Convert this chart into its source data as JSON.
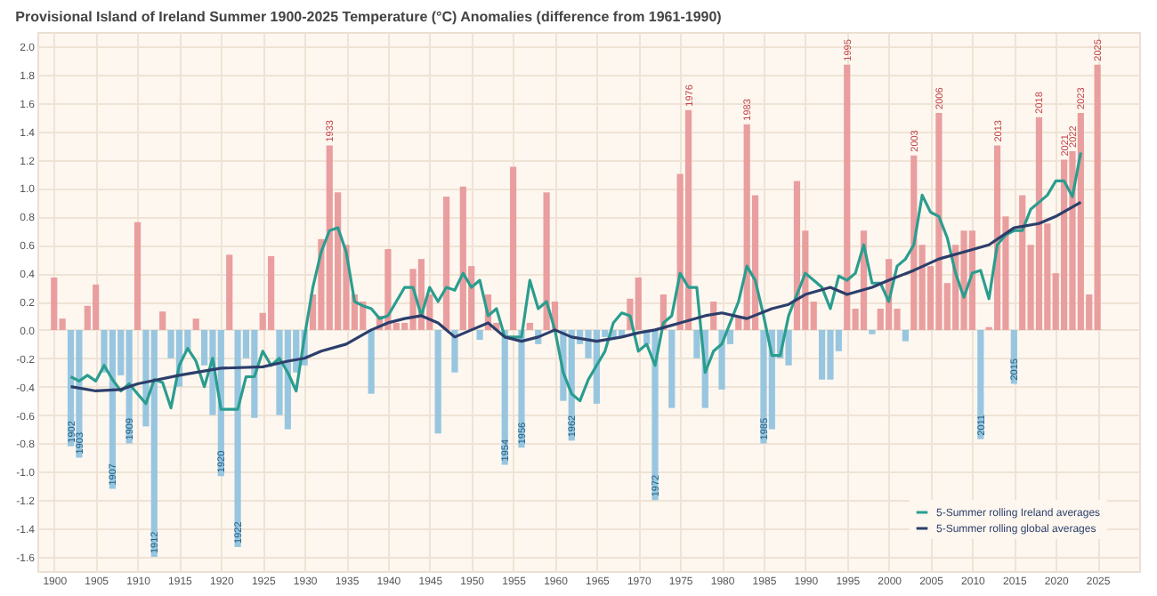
{
  "chart_data": {
    "type": "bar",
    "title": "Provisional Island of Ireland Summer 1900-2025 Temperature (°C) Anomalies (difference from 1961-1990)",
    "x": [
      1900,
      1901,
      1902,
      1903,
      1904,
      1905,
      1906,
      1907,
      1908,
      1909,
      1910,
      1911,
      1912,
      1913,
      1914,
      1915,
      1916,
      1917,
      1918,
      1919,
      1920,
      1921,
      1922,
      1923,
      1924,
      1925,
      1926,
      1927,
      1928,
      1929,
      1930,
      1931,
      1932,
      1933,
      1934,
      1935,
      1936,
      1937,
      1938,
      1939,
      1940,
      1941,
      1942,
      1943,
      1944,
      1945,
      1946,
      1947,
      1948,
      1949,
      1950,
      1951,
      1952,
      1953,
      1954,
      1955,
      1956,
      1957,
      1958,
      1959,
      1960,
      1961,
      1962,
      1963,
      1964,
      1965,
      1966,
      1967,
      1968,
      1969,
      1970,
      1971,
      1972,
      1973,
      1974,
      1975,
      1976,
      1977,
      1978,
      1979,
      1980,
      1981,
      1982,
      1983,
      1984,
      1985,
      1986,
      1987,
      1988,
      1989,
      1990,
      1991,
      1992,
      1993,
      1994,
      1995,
      1996,
      1997,
      1998,
      1999,
      2000,
      2001,
      2002,
      2003,
      2004,
      2005,
      2006,
      2007,
      2008,
      2009,
      2010,
      2011,
      2012,
      2013,
      2014,
      2015,
      2016,
      2017,
      2018,
      2019,
      2020,
      2021,
      2022,
      2023,
      2024,
      2025
    ],
    "values": [
      0.37,
      0.08,
      -0.82,
      -0.9,
      0.17,
      0.32,
      -0.3,
      -1.12,
      -0.32,
      -0.8,
      0.76,
      -0.68,
      -1.6,
      0.13,
      -0.2,
      -0.4,
      -0.15,
      0.08,
      -0.25,
      -0.6,
      -1.03,
      0.53,
      -1.53,
      -0.2,
      -0.62,
      0.12,
      0.52,
      -0.6,
      -0.7,
      -0.3,
      -0.25,
      0.25,
      0.64,
      1.3,
      0.97,
      0.6,
      0.25,
      0.2,
      -0.45,
      0.1,
      0.57,
      0.05,
      0.05,
      0.43,
      0.5,
      0.25,
      -0.73,
      0.94,
      -0.3,
      1.01,
      0.45,
      -0.07,
      0.25,
      0.05,
      -0.95,
      1.15,
      -0.83,
      0.05,
      -0.1,
      0.97,
      0.2,
      -0.5,
      -0.78,
      -0.1,
      -0.2,
      -0.52,
      -0.05,
      -0.05,
      -0.05,
      0.22,
      0.37,
      -0.1,
      -1.2,
      0.25,
      -0.55,
      1.1,
      1.55,
      -0.2,
      -0.55,
      0.2,
      -0.42,
      -0.1,
      0.1,
      1.45,
      0.95,
      -0.8,
      -0.7,
      -0.2,
      -0.25,
      1.05,
      0.7,
      0.2,
      -0.35,
      -0.35,
      -0.15,
      1.87,
      0.15,
      0.7,
      -0.03,
      0.15,
      0.5,
      0.15,
      -0.08,
      1.23,
      0.6,
      0.45,
      1.53,
      0.33,
      0.6,
      0.7,
      0.7,
      -0.77,
      0.02,
      1.3,
      0.8,
      -0.38,
      0.95,
      0.6,
      1.5,
      0.75,
      0.4,
      1.2,
      1.26,
      1.53,
      0.25,
      1.87
    ],
    "colors": [
      "#e8999a",
      "#e8999a",
      "#92c3de",
      "#92c3de",
      "#e8999a",
      "#e8999a",
      "#92c3de",
      "#92c3de",
      "#92c3de",
      "#92c3de",
      "#e8999a",
      "#92c3de",
      "#92c3de",
      "#e8999a",
      "#92c3de",
      "#92c3de",
      "#92c3de",
      "#e8999a",
      "#92c3de",
      "#92c3de",
      "#92c3de",
      "#e8999a",
      "#92c3de",
      "#92c3de",
      "#92c3de",
      "#e8999a",
      "#e8999a",
      "#92c3de",
      "#92c3de",
      "#92c3de",
      "#92c3de",
      "#e8999a",
      "#e8999a",
      "#e8999a",
      "#e8999a",
      "#e8999a",
      "#e8999a",
      "#e8999a",
      "#92c3de",
      "#e8999a",
      "#e8999a",
      "#e8999a",
      "#e8999a",
      "#e8999a",
      "#e8999a",
      "#e8999a",
      "#92c3de",
      "#e8999a",
      "#92c3de",
      "#e8999a",
      "#e8999a",
      "#92c3de",
      "#e8999a",
      "#e8999a",
      "#92c3de",
      "#e8999a",
      "#92c3de",
      "#e8999a",
      "#92c3de",
      "#e8999a",
      "#e8999a",
      "#92c3de",
      "#92c3de",
      "#92c3de",
      "#92c3de",
      "#92c3de",
      "#92c3de",
      "#92c3de",
      "#92c3de",
      "#e8999a",
      "#e8999a",
      "#92c3de",
      "#92c3de",
      "#e8999a",
      "#92c3de",
      "#e8999a",
      "#e8999a",
      "#92c3de",
      "#92c3de",
      "#e8999a",
      "#92c3de",
      "#92c3de",
      "#e8999a",
      "#e8999a",
      "#e8999a",
      "#92c3de",
      "#92c3de",
      "#92c3de",
      "#92c3de",
      "#e8999a",
      "#e8999a",
      "#e8999a",
      "#92c3de",
      "#92c3de",
      "#92c3de",
      "#e8999a",
      "#e8999a",
      "#e8999a",
      "#92c3de",
      "#e8999a",
      "#e8999a",
      "#e8999a",
      "#92c3de",
      "#e8999a",
      "#e8999a",
      "#e8999a",
      "#e8999a",
      "#e8999a",
      "#e8999a",
      "#e8999a",
      "#e8999a",
      "#92c3de",
      "#e8999a",
      "#e8999a",
      "#e8999a",
      "#92c3de",
      "#e8999a",
      "#e8999a",
      "#e8999a",
      "#e8999a",
      "#e8999a",
      "#e8999a",
      "#e8999a",
      "#e8999a",
      "#e8999a",
      "#e8999a"
    ],
    "series": [
      {
        "name": "5-Summer rolling Ireland averages",
        "type": "line",
        "color": "#2a9d8f",
        "x": [
          1902,
          1903,
          1904,
          1905,
          1906,
          1907,
          1908,
          1909,
          1910,
          1911,
          1912,
          1913,
          1914,
          1915,
          1916,
          1917,
          1918,
          1919,
          1920,
          1921,
          1922,
          1923,
          1924,
          1925,
          1926,
          1927,
          1928,
          1929,
          1930,
          1931,
          1932,
          1933,
          1934,
          1935,
          1936,
          1937,
          1938,
          1939,
          1940,
          1941,
          1942,
          1943,
          1944,
          1945,
          1946,
          1947,
          1948,
          1949,
          1950,
          1951,
          1952,
          1953,
          1954,
          1955,
          1956,
          1957,
          1958,
          1959,
          1960,
          1961,
          1962,
          1963,
          1964,
          1965,
          1966,
          1967,
          1968,
          1969,
          1970,
          1971,
          1972,
          1973,
          1974,
          1975,
          1976,
          1977,
          1978,
          1979,
          1980,
          1981,
          1982,
          1983,
          1984,
          1985,
          1986,
          1987,
          1988,
          1989,
          1990,
          1991,
          1992,
          1993,
          1994,
          1995,
          1996,
          1997,
          1998,
          1999,
          2000,
          2001,
          2002,
          2003,
          2004,
          2005,
          2006,
          2007,
          2008,
          2009,
          2010,
          2011,
          2012,
          2013,
          2014,
          2015,
          2016,
          2017,
          2018,
          2019,
          2020,
          2021,
          2022,
          2023
        ],
        "values": [
          -0.33,
          -0.36,
          -0.32,
          -0.36,
          -0.25,
          -0.35,
          -0.43,
          -0.38,
          -0.45,
          -0.52,
          -0.35,
          -0.37,
          -0.55,
          -0.25,
          -0.13,
          -0.22,
          -0.4,
          -0.2,
          -0.56,
          -0.56,
          -0.56,
          -0.33,
          -0.33,
          -0.15,
          -0.25,
          -0.2,
          -0.3,
          -0.43,
          -0.05,
          0.3,
          0.55,
          0.7,
          0.72,
          0.55,
          0.2,
          0.17,
          0.15,
          0.08,
          0.1,
          0.2,
          0.3,
          0.3,
          0.1,
          0.3,
          0.2,
          0.3,
          0.28,
          0.4,
          0.3,
          0.35,
          0.1,
          0.15,
          -0.05,
          -0.05,
          -0.05,
          0.35,
          0.15,
          0.2,
          0.0,
          -0.3,
          -0.45,
          -0.5,
          -0.35,
          -0.25,
          -0.15,
          0.05,
          0.12,
          0.1,
          -0.15,
          -0.1,
          -0.25,
          0.05,
          0.1,
          0.4,
          0.3,
          0.3,
          -0.3,
          -0.15,
          -0.1,
          0.05,
          0.2,
          0.45,
          0.35,
          0.1,
          -0.18,
          -0.18,
          0.1,
          0.25,
          0.4,
          0.35,
          0.3,
          0.15,
          0.38,
          0.35,
          0.4,
          0.6,
          0.33,
          0.33,
          0.2,
          0.45,
          0.5,
          0.6,
          0.95,
          0.83,
          0.8,
          0.65,
          0.4,
          0.23,
          0.4,
          0.42,
          0.22,
          0.6,
          0.67,
          0.7,
          0.7,
          0.85,
          0.9,
          0.95,
          1.05,
          1.05,
          0.94,
          1.25
        ]
      },
      {
        "name": "5-Summer rolling global averages",
        "type": "line",
        "color": "#2c3e6b",
        "x": [
          1902,
          1905,
          1908,
          1910,
          1915,
          1920,
          1925,
          1928,
          1930,
          1932,
          1935,
          1938,
          1940,
          1942,
          1944,
          1946,
          1948,
          1950,
          1952,
          1954,
          1956,
          1958,
          1960,
          1962,
          1965,
          1968,
          1970,
          1972,
          1975,
          1978,
          1980,
          1983,
          1986,
          1988,
          1990,
          1993,
          1995,
          1998,
          2000,
          2003,
          2006,
          2009,
          2012,
          2015,
          2018,
          2020,
          2023
        ],
        "values": [
          -0.4,
          -0.43,
          -0.42,
          -0.38,
          -0.32,
          -0.27,
          -0.26,
          -0.22,
          -0.2,
          -0.15,
          -0.1,
          0.0,
          0.05,
          0.08,
          0.1,
          0.05,
          -0.05,
          0.0,
          0.05,
          -0.05,
          -0.08,
          -0.05,
          0.0,
          -0.05,
          -0.08,
          -0.05,
          -0.02,
          0.0,
          0.05,
          0.1,
          0.12,
          0.08,
          0.15,
          0.18,
          0.25,
          0.3,
          0.25,
          0.3,
          0.35,
          0.42,
          0.5,
          0.55,
          0.6,
          0.72,
          0.75,
          0.8,
          0.9
        ]
      }
    ],
    "annotations": [
      {
        "text": "1902",
        "x": 1902,
        "y": -0.82
      },
      {
        "text": "1903",
        "x": 1903,
        "y": -0.9
      },
      {
        "text": "1907",
        "x": 1907,
        "y": -1.12
      },
      {
        "text": "1909",
        "x": 1909,
        "y": -0.8
      },
      {
        "text": "1912",
        "x": 1912,
        "y": -1.6
      },
      {
        "text": "1920",
        "x": 1920,
        "y": -1.03
      },
      {
        "text": "1922",
        "x": 1922,
        "y": -1.53
      },
      {
        "text": "1933",
        "x": 1933,
        "y": 1.3
      },
      {
        "text": "1954",
        "x": 1954,
        "y": -0.95
      },
      {
        "text": "1956",
        "x": 1956,
        "y": -0.83
      },
      {
        "text": "1962",
        "x": 1962,
        "y": -0.78
      },
      {
        "text": "1972",
        "x": 1972,
        "y": -1.2
      },
      {
        "text": "1976",
        "x": 1976,
        "y": 1.55
      },
      {
        "text": "1983",
        "x": 1983,
        "y": 1.45
      },
      {
        "text": "1985",
        "x": 1985,
        "y": -0.8
      },
      {
        "text": "1995",
        "x": 1995,
        "y": 1.87
      },
      {
        "text": "2003",
        "x": 2003,
        "y": 1.23
      },
      {
        "text": "2006",
        "x": 2006,
        "y": 1.53
      },
      {
        "text": "2011",
        "x": 2011,
        "y": -0.77
      },
      {
        "text": "2013",
        "x": 2013,
        "y": 1.3
      },
      {
        "text": "2015",
        "x": 2015,
        "y": -0.38
      },
      {
        "text": "2018",
        "x": 2018,
        "y": 1.5
      },
      {
        "text": "2021",
        "x": 2021,
        "y": 1.2
      },
      {
        "text": "2022",
        "x": 2022,
        "y": 1.26
      },
      {
        "text": "2023",
        "x": 2023,
        "y": 1.53
      },
      {
        "text": "2025",
        "x": 2025,
        "y": 1.87
      }
    ],
    "xlim": [
      1898,
      2030
    ],
    "xticks": [
      1900,
      1905,
      1910,
      1915,
      1920,
      1925,
      1930,
      1935,
      1940,
      1945,
      1950,
      1955,
      1960,
      1965,
      1970,
      1975,
      1980,
      1985,
      1990,
      1995,
      2000,
      2005,
      2010,
      2015,
      2020,
      2025
    ],
    "ylim": [
      -1.7,
      2.1
    ],
    "yticks": [
      {
        "value": -1.6,
        "label": "-1.6"
      },
      {
        "value": -1.4,
        "label": "-1.4"
      },
      {
        "value": -1.2,
        "label": "-1.2"
      },
      {
        "value": -1.0,
        "label": "-1.0"
      },
      {
        "value": -0.8,
        "label": "-0.8"
      },
      {
        "value": -0.6,
        "label": "-0.6"
      },
      {
        "value": -0.4,
        "label": "-0.4"
      },
      {
        "value": -0.2,
        "label": "-0.2"
      },
      {
        "value": 0,
        "label": "0.0"
      },
      {
        "value": 0.2,
        "label": "0.2"
      },
      {
        "value": 0.4,
        "label": "0.4"
      },
      {
        "value": 0.6,
        "label": "0.6"
      },
      {
        "value": 0.8,
        "label": "0.8"
      },
      {
        "value": 1.0,
        "label": "1.0"
      },
      {
        "value": 1.2,
        "label": "1.2"
      },
      {
        "value": 1.4,
        "label": "1.4"
      },
      {
        "value": 1.6,
        "label": "1.6"
      },
      {
        "value": 1.8,
        "label": "1.8"
      },
      {
        "value": 2.0,
        "label": "2.0"
      }
    ],
    "grid": true,
    "legend": "bottom right",
    "marker": "none",
    "line_style": "solid"
  }
}
